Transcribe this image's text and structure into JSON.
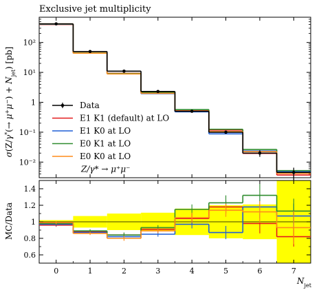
{
  "chart_data": [
    {
      "type": "histogram",
      "title": "Exclusive jet multiplicity",
      "ylabel": "σ(Z/γ*(→ μ⁺μ⁻) + N_jet) [pb]",
      "xlabel": "N_jet",
      "yscale": "log",
      "ylim": [
        0.003,
        700
      ],
      "xlim": [
        -0.5,
        7.5
      ],
      "bin_edges": [
        -0.5,
        0.5,
        1.5,
        2.5,
        3.5,
        4.5,
        5.5,
        6.5,
        7.5
      ],
      "yticks": [
        {
          "value": 0.01,
          "label": "10⁻²"
        },
        {
          "value": 0.1,
          "label": "10⁻¹"
        },
        {
          "value": 1,
          "label": "1"
        },
        {
          "value": 10,
          "label": "10¹"
        },
        {
          "value": 100,
          "label": "10²"
        }
      ],
      "data_points": {
        "name": "Data",
        "x": [
          0,
          1,
          2,
          3,
          4,
          5,
          6,
          7
        ],
        "y": [
          420,
          50,
          11,
          2.3,
          0.5,
          0.1,
          0.02,
          0.0045
        ],
        "yerr_lo": [
          12,
          2,
          0.4,
          0.1,
          0.03,
          0.01,
          0.005,
          0.002
        ],
        "yerr_hi": [
          12,
          2,
          0.4,
          0.1,
          0.03,
          0.01,
          0.005,
          0.002
        ]
      },
      "series": [
        {
          "name": "E1 K1 (default) at LO",
          "color": "#e31a1c",
          "values": [
            400,
            45,
            9.3,
            2.1,
            0.52,
            0.118,
            0.0195,
            0.0037
          ]
        },
        {
          "name": "E1 K0 at LO",
          "color": "#1f5fd6",
          "values": [
            408,
            44,
            9.0,
            1.95,
            0.48,
            0.088,
            0.0235,
            0.0048
          ]
        },
        {
          "name": "E0 K1 at LO",
          "color": "#2e8b2e",
          "values": [
            412,
            45,
            9.2,
            2.15,
            0.57,
            0.125,
            0.0265,
            0.0052
          ]
        },
        {
          "name": "E0 K0 at LO",
          "color": "#ff8c1a",
          "values": [
            418,
            44,
            8.9,
            2.0,
            0.51,
            0.105,
            0.0225,
            0.0042
          ]
        }
      ],
      "legend_annotation": "Z/γ* → μ⁺μ⁻",
      "legend_position": "middle-left"
    },
    {
      "type": "ratio",
      "ylabel": "MC/Data",
      "xlabel": "N_jet",
      "ylim": [
        0.5,
        1.5
      ],
      "xlim": [
        -0.5,
        7.5
      ],
      "bin_edges": [
        -0.5,
        0.5,
        1.5,
        2.5,
        3.5,
        4.5,
        5.5,
        6.5,
        7.5
      ],
      "yticks": [
        0.6,
        0.8,
        1,
        1.2,
        1.4
      ],
      "xticks": [
        0,
        1,
        2,
        3,
        4,
        5,
        6,
        7
      ],
      "uncertainty_band": {
        "color": "#ffff00",
        "lo": [
          0.98,
          0.93,
          0.9,
          0.89,
          0.84,
          0.8,
          0.79,
          0.5
        ],
        "hi": [
          1.02,
          1.07,
          1.1,
          1.11,
          1.16,
          1.2,
          1.21,
          1.5
        ]
      },
      "series": [
        {
          "name": "E1 K1 (default) at LO",
          "color": "#e31a1c",
          "values": [
            0.96,
            0.88,
            0.84,
            0.91,
            1.04,
            1.18,
            0.98,
            0.82
          ],
          "err": [
            0.02,
            0.02,
            0.03,
            0.03,
            0.06,
            0.08,
            0.12,
            0.12
          ]
        },
        {
          "name": "E1 K0 at LO",
          "color": "#1f5fd6",
          "values": [
            0.97,
            0.87,
            0.82,
            0.85,
            0.97,
            0.87,
            1.18,
            1.07
          ],
          "err": [
            0.02,
            0.02,
            0.03,
            0.03,
            0.05,
            0.08,
            0.14,
            0.15
          ]
        },
        {
          "name": "E0 K1 at LO",
          "color": "#2e8b2e",
          "values": [
            0.98,
            0.89,
            0.84,
            0.93,
            1.15,
            1.23,
            1.32,
            1.13
          ],
          "err": [
            0.02,
            0.02,
            0.03,
            0.03,
            0.06,
            0.09,
            0.14,
            0.15
          ]
        },
        {
          "name": "E0 K0 at LO",
          "color": "#ff8c1a",
          "values": [
            0.99,
            0.86,
            0.8,
            0.89,
            1.05,
            1.14,
            1.12,
            0.93
          ],
          "err": [
            0.02,
            0.02,
            0.03,
            0.03,
            0.06,
            0.08,
            0.13,
            0.2
          ]
        }
      ]
    }
  ]
}
